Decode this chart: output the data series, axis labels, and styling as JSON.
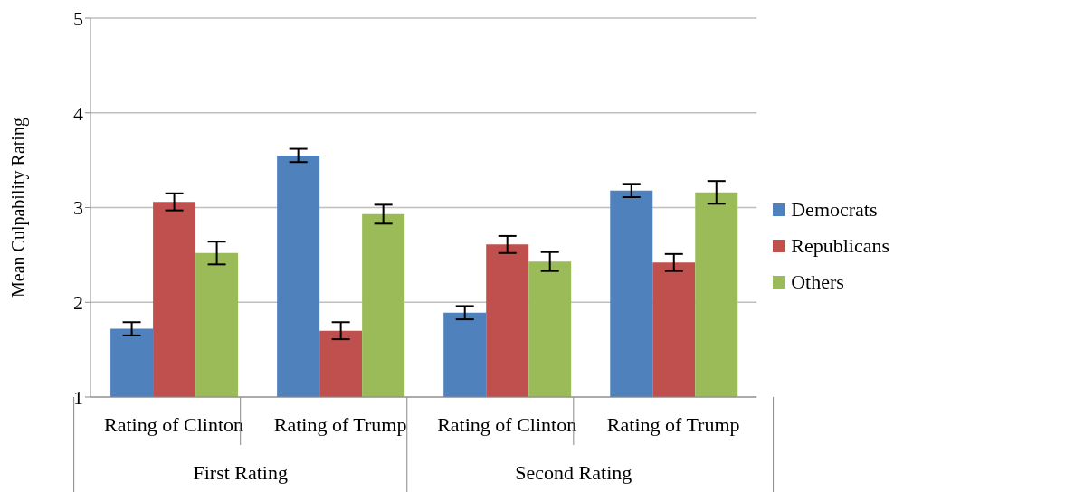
{
  "chart_data": {
    "type": "bar",
    "ylabel": "Mean Culpability Rating",
    "categories": [
      "Rating of Clinton",
      "Rating of Trump",
      "Rating of Clinton",
      "Rating of Trump"
    ],
    "annotations": [
      "First Rating",
      "Second Rating"
    ],
    "series": [
      {
        "name": "Democrats",
        "color": "#4f81bd",
        "values": [
          1.72,
          3.55,
          1.89,
          3.18
        ],
        "errors": [
          0.07,
          0.07,
          0.07,
          0.07
        ]
      },
      {
        "name": "Republicans",
        "color": "#c0504d",
        "values": [
          3.06,
          1.7,
          2.61,
          2.42
        ],
        "errors": [
          0.09,
          0.09,
          0.09,
          0.09
        ]
      },
      {
        "name": "Others",
        "color": "#9bbb59",
        "values": [
          2.52,
          2.93,
          2.43,
          3.16
        ],
        "errors": [
          0.12,
          0.1,
          0.1,
          0.12
        ]
      }
    ],
    "ylim": [
      1,
      5
    ],
    "yticks": [
      1,
      2,
      3,
      4,
      5
    ],
    "grid": "y",
    "legend": "right"
  }
}
